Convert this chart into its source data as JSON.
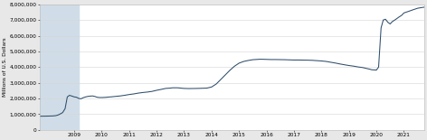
{
  "title": "",
  "ylabel": "Millions of U.S. Dollars",
  "ylim": [
    0,
    8000000
  ],
  "yticks": [
    0,
    1000000,
    2000000,
    3000000,
    4000000,
    5000000,
    6000000,
    7000000,
    8000000
  ],
  "xlim_start": 2007.75,
  "xlim_end": 2021.75,
  "xticks": [
    2009,
    2010,
    2011,
    2012,
    2013,
    2014,
    2015,
    2016,
    2017,
    2018,
    2019,
    2020,
    2021
  ],
  "shaded_start": 2007.75,
  "shaded_end": 2009.17,
  "line_color": "#2e4d6b",
  "line_width": 0.75,
  "bg_color": "#e8e8e8",
  "plot_bg": "#ffffff",
  "shaded_color": "#d0dde8",
  "data_points": [
    [
      2007.75,
      870000
    ],
    [
      2007.83,
      870000
    ],
    [
      2008.0,
      875000
    ],
    [
      2008.08,
      878000
    ],
    [
      2008.17,
      882000
    ],
    [
      2008.25,
      890000
    ],
    [
      2008.33,
      905000
    ],
    [
      2008.42,
      950000
    ],
    [
      2008.5,
      1020000
    ],
    [
      2008.58,
      1100000
    ],
    [
      2008.67,
      1350000
    ],
    [
      2008.75,
      2100000
    ],
    [
      2008.83,
      2200000
    ],
    [
      2008.92,
      2150000
    ],
    [
      2009.0,
      2100000
    ],
    [
      2009.08,
      2080000
    ],
    [
      2009.17,
      2000000
    ],
    [
      2009.25,
      1980000
    ],
    [
      2009.33,
      2050000
    ],
    [
      2009.42,
      2100000
    ],
    [
      2009.5,
      2130000
    ],
    [
      2009.58,
      2150000
    ],
    [
      2009.67,
      2160000
    ],
    [
      2009.75,
      2130000
    ],
    [
      2009.83,
      2080000
    ],
    [
      2009.92,
      2060000
    ],
    [
      2010.0,
      2060000
    ],
    [
      2010.08,
      2065000
    ],
    [
      2010.17,
      2075000
    ],
    [
      2010.25,
      2090000
    ],
    [
      2010.33,
      2100000
    ],
    [
      2010.5,
      2130000
    ],
    [
      2010.67,
      2160000
    ],
    [
      2010.83,
      2200000
    ],
    [
      2011.0,
      2250000
    ],
    [
      2011.17,
      2290000
    ],
    [
      2011.33,
      2340000
    ],
    [
      2011.5,
      2380000
    ],
    [
      2011.67,
      2410000
    ],
    [
      2011.75,
      2430000
    ],
    [
      2011.83,
      2450000
    ],
    [
      2012.0,
      2520000
    ],
    [
      2012.17,
      2580000
    ],
    [
      2012.25,
      2610000
    ],
    [
      2012.33,
      2640000
    ],
    [
      2012.5,
      2660000
    ],
    [
      2012.58,
      2680000
    ],
    [
      2012.67,
      2680000
    ],
    [
      2012.75,
      2680000
    ],
    [
      2012.83,
      2670000
    ],
    [
      2012.92,
      2650000
    ],
    [
      2013.0,
      2640000
    ],
    [
      2013.08,
      2635000
    ],
    [
      2013.17,
      2630000
    ],
    [
      2013.33,
      2635000
    ],
    [
      2013.5,
      2640000
    ],
    [
      2013.67,
      2650000
    ],
    [
      2013.83,
      2660000
    ],
    [
      2014.0,
      2730000
    ],
    [
      2014.17,
      2920000
    ],
    [
      2014.33,
      3200000
    ],
    [
      2014.5,
      3500000
    ],
    [
      2014.67,
      3800000
    ],
    [
      2014.83,
      4050000
    ],
    [
      2015.0,
      4250000
    ],
    [
      2015.17,
      4360000
    ],
    [
      2015.33,
      4420000
    ],
    [
      2015.5,
      4470000
    ],
    [
      2015.67,
      4490000
    ],
    [
      2015.75,
      4500000
    ],
    [
      2015.83,
      4500000
    ],
    [
      2016.0,
      4490000
    ],
    [
      2016.17,
      4480000
    ],
    [
      2016.33,
      4480000
    ],
    [
      2016.5,
      4475000
    ],
    [
      2016.67,
      4470000
    ],
    [
      2016.83,
      4460000
    ],
    [
      2017.0,
      4450000
    ],
    [
      2017.17,
      4450000
    ],
    [
      2017.33,
      4445000
    ],
    [
      2017.5,
      4440000
    ],
    [
      2017.67,
      4430000
    ],
    [
      2017.83,
      4410000
    ],
    [
      2018.0,
      4390000
    ],
    [
      2018.17,
      4360000
    ],
    [
      2018.33,
      4310000
    ],
    [
      2018.5,
      4260000
    ],
    [
      2018.67,
      4200000
    ],
    [
      2018.83,
      4150000
    ],
    [
      2019.0,
      4100000
    ],
    [
      2019.17,
      4060000
    ],
    [
      2019.33,
      4010000
    ],
    [
      2019.5,
      3970000
    ],
    [
      2019.67,
      3900000
    ],
    [
      2019.75,
      3870000
    ],
    [
      2019.83,
      3830000
    ],
    [
      2020.0,
      3810000
    ],
    [
      2020.08,
      4000000
    ],
    [
      2020.17,
      6500000
    ],
    [
      2020.25,
      7000000
    ],
    [
      2020.33,
      7050000
    ],
    [
      2020.42,
      6850000
    ],
    [
      2020.5,
      6750000
    ],
    [
      2020.58,
      6900000
    ],
    [
      2020.67,
      7000000
    ],
    [
      2020.75,
      7100000
    ],
    [
      2020.83,
      7200000
    ],
    [
      2020.92,
      7300000
    ],
    [
      2021.0,
      7450000
    ],
    [
      2021.17,
      7550000
    ],
    [
      2021.33,
      7650000
    ],
    [
      2021.5,
      7750000
    ],
    [
      2021.67,
      7800000
    ],
    [
      2021.75,
      7820000
    ]
  ]
}
